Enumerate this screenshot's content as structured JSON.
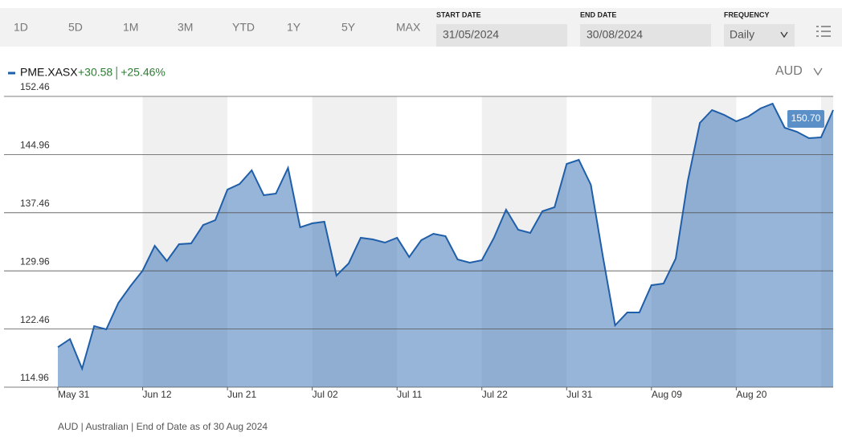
{
  "toolbar": {
    "ranges": [
      "1D",
      "5D",
      "1M",
      "3M",
      "YTD",
      "1Y",
      "5Y",
      "MAX"
    ],
    "start_date_label": "START DATE",
    "start_date": "31/05/2024",
    "end_date_label": "END DATE",
    "end_date": "30/08/2024",
    "frequency_label": "FREQUENCY",
    "frequency": "Daily"
  },
  "currency": "AUD",
  "footer": "AUD | Australian | End of Date as of 30 Aug 2024",
  "chart_data": {
    "type": "area",
    "change": "+30.58",
    "change_pct": "+25.46%",
    "categories": [
      "May 31",
      null,
      null,
      null,
      null,
      null,
      null,
      "Jun 12",
      null,
      null,
      null,
      null,
      null,
      null,
      "Jun 21",
      null,
      null,
      null,
      null,
      null,
      null,
      "Jul 02",
      null,
      null,
      null,
      null,
      null,
      null,
      "Jul 11",
      null,
      null,
      null,
      null,
      null,
      null,
      "Jul 22",
      null,
      null,
      null,
      null,
      null,
      null,
      "Jul 31",
      null,
      null,
      null,
      null,
      null,
      null,
      "Aug 09",
      null,
      null,
      null,
      null,
      null,
      null,
      "Aug 20",
      null,
      null,
      null,
      null,
      null,
      null,
      null,
      null
    ],
    "series": [
      {
        "name": "PME.XASX",
        "color": "#1f5ea8",
        "values": [
          120.12,
          121.17,
          117.34,
          122.83,
          122.42,
          125.84,
          128.01,
          129.98,
          133.19,
          131.22,
          133.4,
          133.5,
          135.88,
          136.51,
          140.44,
          141.17,
          142.93,
          139.72,
          139.93,
          143.24,
          135.57,
          136.09,
          136.3,
          129.36,
          130.91,
          134.23,
          134.02,
          133.61,
          134.23,
          131.74,
          133.92,
          134.75,
          134.43,
          131.43,
          131.02,
          131.33,
          134.23,
          137.85,
          135.26,
          134.85,
          137.65,
          138.16,
          143.76,
          144.28,
          141.06,
          131.74,
          122.94,
          124.59,
          124.59,
          128.11,
          128.32,
          131.53,
          141.58,
          149.04,
          150.7,
          150.08,
          149.25,
          149.87,
          150.91,
          151.53,
          148.42,
          147.9,
          147.07,
          147.18,
          150.7
        ],
        "value_labels": [
          null,
          null,
          null,
          null,
          null,
          null,
          null,
          null,
          null,
          null,
          null,
          null,
          null,
          null,
          null,
          null,
          null,
          null,
          null,
          null,
          null,
          null,
          null,
          null,
          null,
          null,
          null,
          null,
          null,
          null,
          null,
          null,
          null,
          null,
          null,
          null,
          null,
          null,
          null,
          null,
          null,
          null,
          null,
          null,
          null,
          null,
          null,
          null,
          null,
          null,
          null,
          null,
          null,
          null,
          null,
          null,
          null,
          null,
          null,
          null,
          null,
          null,
          null,
          null,
          "150.70"
        ]
      }
    ],
    "ylim": [
      114.96,
      152.46
    ],
    "yticks": [
      114.96,
      122.46,
      129.96,
      137.46,
      144.96,
      152.46
    ],
    "grid": true
  }
}
